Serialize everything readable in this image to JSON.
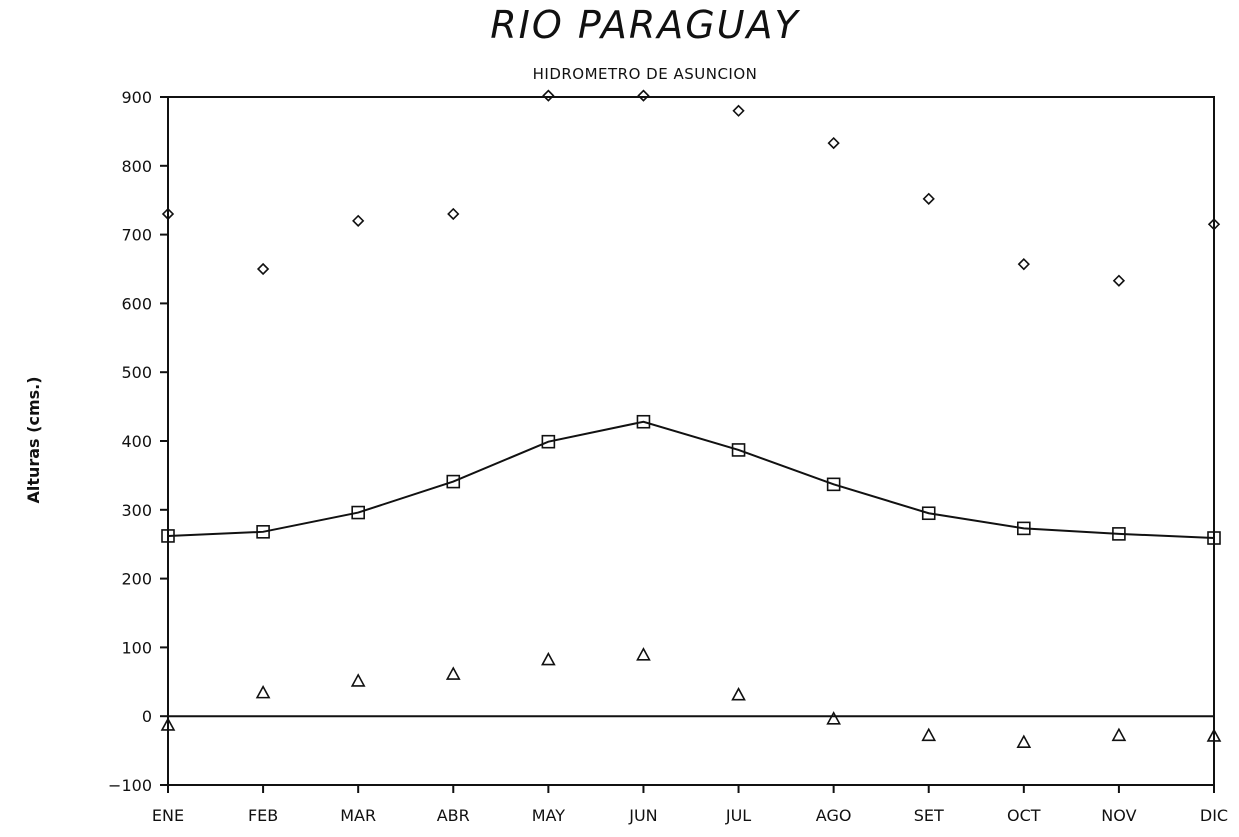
{
  "chart_data": {
    "type": "line",
    "title": "RIO PARAGUAY",
    "subtitle": "HIDROMETRO DE ASUNCION",
    "xlabel": "",
    "ylabel": "Alturas (cms.)",
    "categories": [
      "ENE",
      "FEB",
      "MAR",
      "ABR",
      "MAY",
      "JUN",
      "JUL",
      "AGO",
      "SET",
      "OCT",
      "NOV",
      "DIC"
    ],
    "ylim": [
      -100,
      900
    ],
    "yticks": [
      -100,
      0,
      100,
      200,
      300,
      400,
      500,
      600,
      700,
      800,
      900
    ],
    "grid": false,
    "legend": "none",
    "series": [
      {
        "marker": "diamond",
        "line": false,
        "values": [
          730,
          650,
          720,
          730,
          902,
          902,
          880,
          833,
          752,
          657,
          633,
          715
        ]
      },
      {
        "marker": "square",
        "line": true,
        "values": [
          262,
          268,
          296,
          341,
          399,
          428,
          387,
          337,
          295,
          273,
          265,
          259
        ]
      },
      {
        "marker": "triangle",
        "line": false,
        "values": [
          -12,
          35,
          52,
          62,
          83,
          90,
          32,
          -3,
          -27,
          -37,
          -27,
          -28
        ]
      }
    ]
  }
}
